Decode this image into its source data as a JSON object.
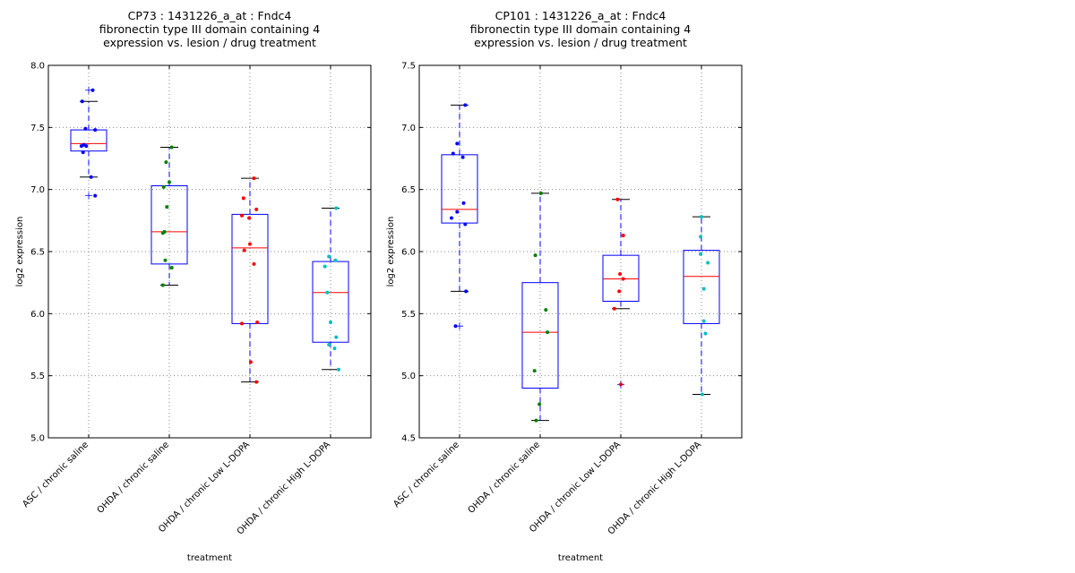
{
  "chart_data": [
    {
      "type": "box",
      "title_lines": [
        "CP73 : 1431226_a_at : Fndc4",
        "fibronectin type III domain containing 4",
        " expression vs. lesion / drug treatment"
      ],
      "xlabel": "treatment",
      "ylabel": "log2 expression",
      "ylim": [
        5.0,
        8.0
      ],
      "yticks": [
        "5.0",
        "5.5",
        "6.0",
        "6.5",
        "7.0",
        "7.5",
        "8.0"
      ],
      "grid": true,
      "categories": [
        "ASC / chronic saline",
        "OHDA / chronic saline",
        "OHDA / chronic Low L-DOPA",
        "OHDA / chronic High L-DOPA"
      ],
      "point_colors": [
        "#0000ff",
        "#008000",
        "#ff0000",
        "#00bfbf"
      ],
      "boxes": [
        {
          "whislo": 7.1,
          "q1": 7.31,
          "med": 7.37,
          "q3": 7.48,
          "whishi": 7.71,
          "fliers": [
            7.8,
            6.95
          ]
        },
        {
          "whislo": 6.23,
          "q1": 6.4,
          "med": 6.66,
          "q3": 7.03,
          "whishi": 7.34,
          "fliers": []
        },
        {
          "whislo": 5.45,
          "q1": 5.92,
          "med": 6.53,
          "q3": 6.8,
          "whishi": 7.09,
          "fliers": []
        },
        {
          "whislo": 5.55,
          "q1": 5.77,
          "med": 6.17,
          "q3": 6.42,
          "whishi": 6.85,
          "fliers": []
        }
      ],
      "points": [
        [
          [
            0.05,
            7.8
          ],
          [
            -0.08,
            7.71
          ],
          [
            -0.04,
            7.49
          ],
          [
            0.08,
            7.48
          ],
          [
            -0.06,
            7.36
          ],
          [
            -0.09,
            7.35
          ],
          [
            -0.03,
            7.35
          ],
          [
            -0.07,
            7.3
          ],
          [
            0.03,
            7.1
          ],
          [
            0.08,
            6.95
          ]
        ],
        [
          [
            0.03,
            7.34
          ],
          [
            -0.04,
            7.22
          ],
          [
            0.0,
            7.06
          ],
          [
            -0.07,
            7.02
          ],
          [
            -0.03,
            6.86
          ],
          [
            -0.06,
            6.66
          ],
          [
            -0.08,
            6.65
          ],
          [
            -0.05,
            6.43
          ],
          [
            0.03,
            6.37
          ],
          [
            -0.08,
            6.23
          ]
        ],
        [
          [
            0.05,
            7.09
          ],
          [
            -0.08,
            6.93
          ],
          [
            0.08,
            6.84
          ],
          [
            -0.1,
            6.79
          ],
          [
            -0.01,
            6.77
          ],
          [
            0.0,
            6.56
          ],
          [
            -0.07,
            6.51
          ],
          [
            0.05,
            6.4
          ],
          [
            -0.1,
            5.92
          ],
          [
            0.09,
            5.93
          ],
          [
            0.01,
            5.61
          ],
          [
            0.08,
            5.45
          ]
        ],
        [
          [
            0.07,
            6.85
          ],
          [
            -0.02,
            6.46
          ],
          [
            0.06,
            6.43
          ],
          [
            -0.07,
            6.38
          ],
          [
            -0.04,
            6.17
          ],
          [
            0.0,
            5.93
          ],
          [
            0.07,
            5.81
          ],
          [
            -0.02,
            5.75
          ],
          [
            0.05,
            5.72
          ],
          [
            0.1,
            5.55
          ]
        ]
      ]
    },
    {
      "type": "box",
      "title_lines": [
        "CP101 : 1431226_a_at : Fndc4",
        "fibronectin type III domain containing 4",
        " expression vs. lesion / drug treatment"
      ],
      "xlabel": "treatment",
      "ylabel": "log2 expression",
      "ylim": [
        4.5,
        7.5
      ],
      "yticks": [
        "4.5",
        "5.0",
        "5.5",
        "6.0",
        "6.5",
        "7.0",
        "7.5"
      ],
      "grid": true,
      "categories": [
        "ASC / chronic saline",
        "OHDA / chronic saline",
        "OHDA / chronic Low L-DOPA",
        "OHDA / chronic High L-DOPA"
      ],
      "point_colors": [
        "#0000ff",
        "#008000",
        "#ff0000",
        "#00bfbf"
      ],
      "boxes": [
        {
          "whislo": 5.68,
          "q1": 6.23,
          "med": 6.34,
          "q3": 6.78,
          "whishi": 7.18,
          "fliers": [
            5.4
          ]
        },
        {
          "whislo": 4.64,
          "q1": 4.9,
          "med": 5.35,
          "q3": 5.75,
          "whishi": 6.47,
          "fliers": []
        },
        {
          "whislo": 5.54,
          "q1": 5.6,
          "med": 5.78,
          "q3": 5.97,
          "whishi": 6.42,
          "fliers": [
            4.93
          ]
        },
        {
          "whislo": 4.85,
          "q1": 5.42,
          "med": 5.8,
          "q3": 6.01,
          "whishi": 6.28,
          "fliers": []
        }
      ],
      "points": [
        [
          [
            0.07,
            7.18
          ],
          [
            -0.03,
            6.87
          ],
          [
            -0.08,
            6.79
          ],
          [
            0.04,
            6.76
          ],
          [
            0.05,
            6.39
          ],
          [
            -0.03,
            6.32
          ],
          [
            -0.1,
            6.27
          ],
          [
            0.07,
            6.22
          ],
          [
            0.08,
            5.68
          ],
          [
            -0.05,
            5.4
          ]
        ],
        [
          [
            0.01,
            6.47
          ],
          [
            -0.06,
            5.97
          ],
          [
            0.07,
            5.53
          ],
          [
            0.09,
            5.35
          ],
          [
            -0.07,
            5.04
          ],
          [
            -0.01,
            4.77
          ],
          [
            -0.05,
            4.64
          ]
        ],
        [
          [
            -0.04,
            6.42
          ],
          [
            0.03,
            6.13
          ],
          [
            -0.01,
            5.82
          ],
          [
            0.03,
            5.78
          ],
          [
            -0.02,
            5.68
          ],
          [
            -0.08,
            5.54
          ],
          [
            0.0,
            4.93
          ]
        ],
        [
          [
            0.0,
            6.28
          ],
          [
            -0.01,
            6.12
          ],
          [
            -0.01,
            5.98
          ],
          [
            0.08,
            5.91
          ],
          [
            0.03,
            5.7
          ],
          [
            0.03,
            5.44
          ],
          [
            0.05,
            5.34
          ],
          [
            0.01,
            4.85
          ]
        ]
      ]
    }
  ]
}
